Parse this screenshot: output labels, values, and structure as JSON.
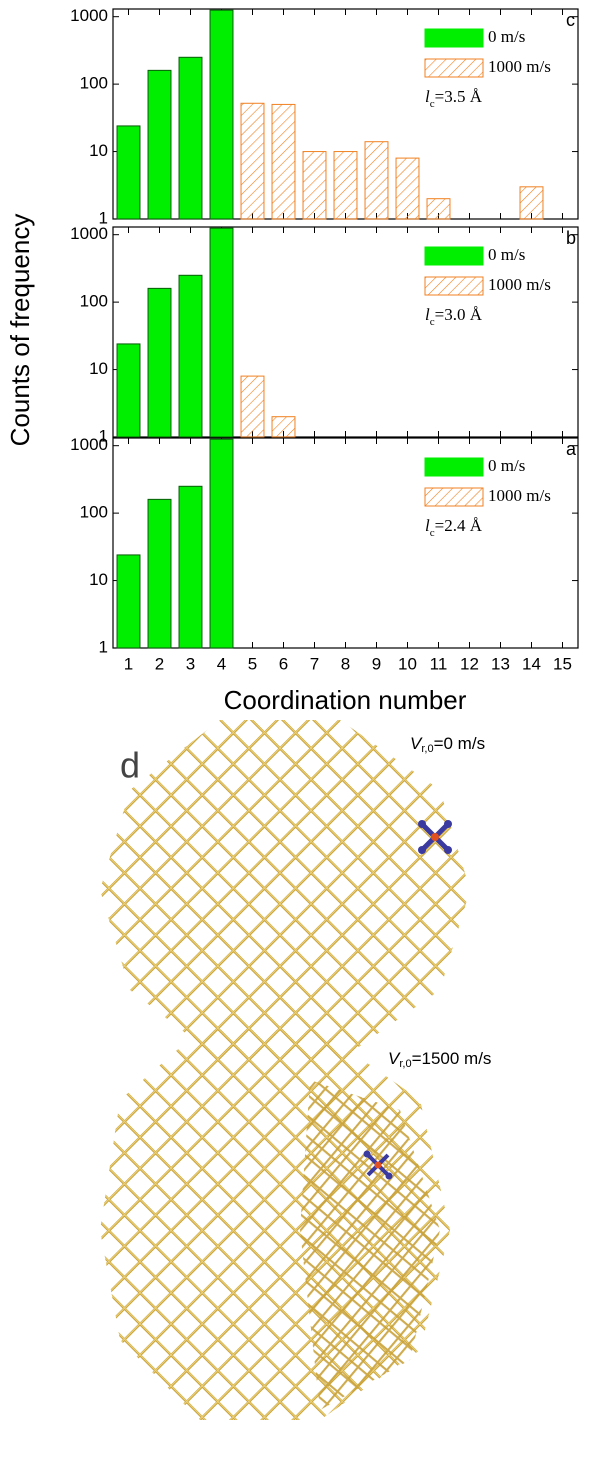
{
  "y_label": "Counts of frequency",
  "x_label": "Coordination number",
  "chart_data": [
    {
      "type": "bar",
      "panel": "c",
      "log_y": true,
      "x": [
        1,
        2,
        3,
        4,
        5,
        6,
        7,
        8,
        9,
        10,
        11,
        12,
        13,
        14,
        15
      ],
      "xlim": [
        0.5,
        15.5
      ],
      "xticks": [
        1,
        2,
        3,
        4,
        5,
        6,
        7,
        8,
        9,
        10,
        11,
        12,
        13,
        14,
        15
      ],
      "ylim": [
        1,
        1300
      ],
      "yticks": [
        1,
        10,
        100,
        1000
      ],
      "series": [
        {
          "name": "0 m/s",
          "color": "#00ee00",
          "values": [
            24,
            160,
            250,
            1250,
            null,
            null,
            null,
            null,
            null,
            null,
            null,
            null,
            null,
            null,
            null
          ]
        },
        {
          "name": "1000 m/s",
          "color": "#f08020",
          "hatch": true,
          "values": [
            null,
            null,
            null,
            null,
            52,
            50,
            10,
            10,
            14,
            8,
            2,
            null,
            null,
            3,
            null
          ]
        }
      ],
      "annotation": {
        "symbol": "l",
        "subscript": "c",
        "text": "=3.5 Å"
      }
    },
    {
      "type": "bar",
      "panel": "b",
      "log_y": true,
      "x": [
        1,
        2,
        3,
        4,
        5,
        6,
        7,
        8,
        9,
        10,
        11,
        12,
        13,
        14,
        15
      ],
      "xlim": [
        0.5,
        15.5
      ],
      "xticks": [
        1,
        2,
        3,
        4,
        5,
        6,
        7,
        8,
        9,
        10,
        11,
        12,
        13,
        14,
        15
      ],
      "ylim": [
        1,
        1300
      ],
      "yticks": [
        1,
        10,
        100,
        1000
      ],
      "series": [
        {
          "name": "0 m/s",
          "color": "#00ee00",
          "values": [
            24,
            160,
            250,
            1250,
            null,
            null,
            null,
            null,
            null,
            null,
            null,
            null,
            null,
            null,
            null
          ]
        },
        {
          "name": "1000 m/s",
          "color": "#f08020",
          "hatch": true,
          "values": [
            null,
            null,
            null,
            null,
            8,
            2,
            null,
            null,
            null,
            null,
            null,
            null,
            null,
            null,
            null
          ]
        }
      ],
      "annotation": {
        "symbol": "l",
        "subscript": "c",
        "text": "=3.0 Å"
      }
    },
    {
      "type": "bar",
      "panel": "a",
      "log_y": true,
      "x": [
        1,
        2,
        3,
        4,
        5,
        6,
        7,
        8,
        9,
        10,
        11,
        12,
        13,
        14,
        15
      ],
      "xlim": [
        0.5,
        15.5
      ],
      "xticks": [
        1,
        2,
        3,
        4,
        5,
        6,
        7,
        8,
        9,
        10,
        11,
        12,
        13,
        14,
        15
      ],
      "ylim": [
        1,
        1300
      ],
      "yticks": [
        1,
        10,
        100,
        1000
      ],
      "series": [
        {
          "name": "0 m/s",
          "color": "#00ee00",
          "values": [
            24,
            160,
            250,
            1250,
            null,
            null,
            null,
            null,
            null,
            null,
            null,
            null,
            null,
            null,
            null
          ]
        },
        {
          "name": "1000 m/s",
          "color": "#f08020",
          "hatch": true,
          "values": [
            null,
            null,
            null,
            null,
            null,
            null,
            null,
            null,
            null,
            null,
            null,
            null,
            null,
            null,
            null
          ]
        }
      ],
      "annotation": {
        "symbol": "l",
        "subscript": "c",
        "text": "=2.4 Å"
      }
    }
  ],
  "panel_d": {
    "label": "d",
    "top": {
      "symbol": "V",
      "subscript": "r,0",
      "text": "=0 m/s"
    },
    "bottom": {
      "symbol": "V",
      "subscript": "r,0",
      "text": "=1500 m/s"
    }
  }
}
